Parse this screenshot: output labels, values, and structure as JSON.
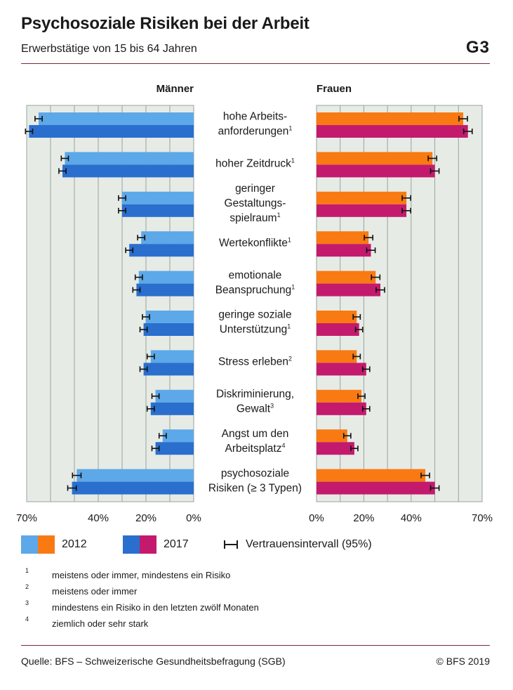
{
  "header": {
    "title": "Psychosoziale Risiken bei der Arbeit",
    "subtitle": "Erwerbstätige von 15 bis 64 Jahren",
    "code": "G3"
  },
  "colors": {
    "men_2012": "#5da8e8",
    "men_2017": "#2a6fce",
    "women_2012": "#f97a12",
    "women_2017": "#c41a6e",
    "panel_bg": "#e6ebe6",
    "grid": "#9aa39a",
    "rule": "#7a2a35"
  },
  "chart_data": {
    "type": "bar",
    "orientation": "horizontal",
    "panels": [
      "Männer",
      "Frauen"
    ],
    "categories": [
      {
        "label": "hohe Arbeits- anforderungen",
        "lines": [
          "hohe Arbeits-",
          "anforderungen"
        ],
        "note": "1"
      },
      {
        "label": "hoher Zeitdruck",
        "lines": [
          "hoher Zeitdruck"
        ],
        "note": "1"
      },
      {
        "label": "geringer Gestaltungs- spielraum",
        "lines": [
          "geringer",
          "Gestaltungs-",
          "spielraum"
        ],
        "note": "1"
      },
      {
        "label": "Wertekonflikte",
        "lines": [
          "Wertekonflikte"
        ],
        "note": "1"
      },
      {
        "label": "emotionale Beanspruchung",
        "lines": [
          "emotionale",
          "Beanspruchung"
        ],
        "note": "1"
      },
      {
        "label": "geringe soziale Unterstützung",
        "lines": [
          "geringe soziale",
          "Unterstützung"
        ],
        "note": "1"
      },
      {
        "label": "Stress erleben",
        "lines": [
          "Stress erleben"
        ],
        "note": "2"
      },
      {
        "label": "Diskriminierung, Gewalt",
        "lines": [
          "Diskriminierung,",
          "Gewalt"
        ],
        "note": "3"
      },
      {
        "label": "Angst um den Arbeitsplatz",
        "lines": [
          "Angst um den",
          "Arbeitsplatz"
        ],
        "note": "4"
      },
      {
        "label": "psychosoziale Risiken (≥ 3 Typen)",
        "lines": [
          "psychosoziale",
          "Risiken (≥ 3 Typen)"
        ],
        "note": ""
      }
    ],
    "series": [
      {
        "name": "2012",
        "group": "Männer",
        "values": [
          65,
          54,
          30,
          22,
          23,
          20,
          18,
          16,
          13,
          49
        ],
        "ci": [
          1.5,
          1.5,
          1.5,
          1.5,
          1.5,
          1.5,
          1.5,
          1.5,
          1.5,
          1.8
        ]
      },
      {
        "name": "2017",
        "group": "Männer",
        "values": [
          69,
          55,
          30,
          27,
          24,
          21,
          21,
          18,
          16,
          51
        ],
        "ci": [
          1.5,
          1.5,
          1.5,
          1.5,
          1.5,
          1.5,
          1.5,
          1.5,
          1.5,
          1.8
        ]
      },
      {
        "name": "2012",
        "group": "Frauen",
        "values": [
          62,
          49,
          38,
          22,
          25,
          17,
          17,
          19,
          13,
          46
        ],
        "ci": [
          1.8,
          1.8,
          1.8,
          1.8,
          1.8,
          1.5,
          1.5,
          1.5,
          1.5,
          1.8
        ]
      },
      {
        "name": "2017",
        "group": "Frauen",
        "values": [
          64,
          50,
          38,
          23,
          27,
          18,
          21,
          21,
          16,
          50
        ],
        "ci": [
          1.8,
          1.8,
          1.8,
          1.8,
          1.8,
          1.5,
          1.5,
          1.5,
          1.5,
          1.8
        ]
      }
    ],
    "xticks": [
      "70%",
      "40%",
      "20%",
      "0%",
      "0%",
      "20%",
      "40%",
      "70%"
    ],
    "xlim": [
      0,
      70
    ],
    "grid": true,
    "legend": {
      "position": "bottom",
      "label_2012": "2012",
      "label_2017": "2017",
      "ci_label": "Vertrauensintervall (95%)"
    }
  },
  "footnotes": [
    {
      "mark": "1",
      "text": "meistens oder immer, mindestens ein Risiko"
    },
    {
      "mark": "2",
      "text": "meistens oder immer"
    },
    {
      "mark": "3",
      "text": "mindestens ein Risiko in den letzten zwölf Monaten"
    },
    {
      "mark": "4",
      "text": "ziemlich oder sehr stark"
    }
  ],
  "footer": {
    "source": "Quelle: BFS – Schweizerische Gesundheitsbefragung (SGB)",
    "copyright": "© BFS 2019"
  }
}
